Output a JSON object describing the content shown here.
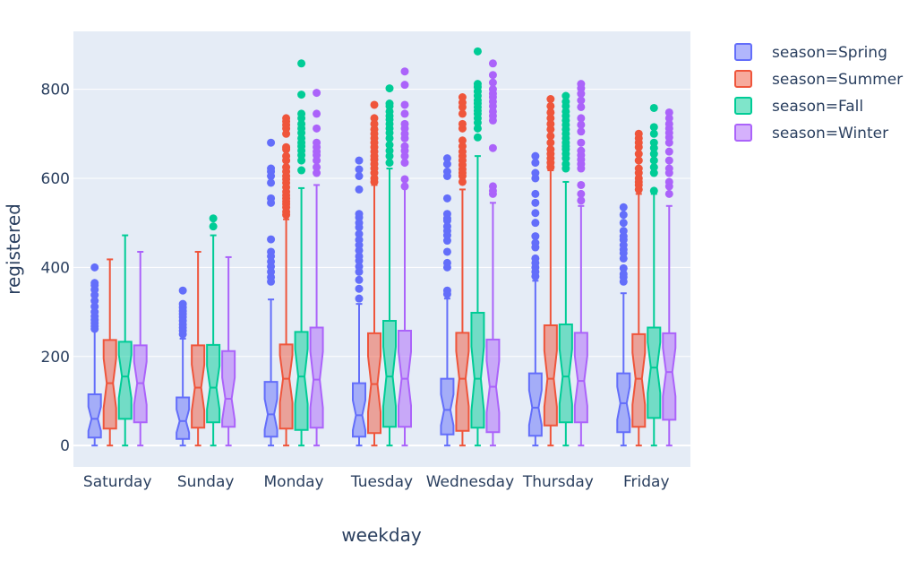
{
  "chart_data": {
    "type": "box",
    "notched": true,
    "xlabel": "weekday",
    "ylabel": "registered",
    "ylim": [
      -48,
      930
    ],
    "y_ticks": [
      0,
      200,
      400,
      600,
      800
    ],
    "y_tick_labels": [
      "0",
      "200",
      "400",
      "600",
      "800"
    ],
    "categories": [
      "Saturday",
      "Sunday",
      "Monday",
      "Tuesday",
      "Wednesday",
      "Thursday",
      "Friday"
    ],
    "grid": true,
    "legend_position": "top-right",
    "series": [
      {
        "name": "season=Spring",
        "color": "#636efa",
        "fill": "#b1b6fc",
        "boxes": [
          {
            "min": 0,
            "q1": 18,
            "median": 60,
            "q3": 115,
            "max": 258,
            "outliers": [
              262,
              268,
              275,
              282,
              290,
              300,
              312,
              325,
              338,
              350,
              360,
              365,
              400
            ]
          },
          {
            "min": 0,
            "q1": 15,
            "median": 55,
            "q3": 108,
            "max": 240,
            "outliers": [
              250,
              258,
              265,
              272,
              280,
              288,
              295,
              302,
              310,
              318,
              348
            ]
          },
          {
            "min": 0,
            "q1": 20,
            "median": 70,
            "q3": 143,
            "max": 328,
            "outliers": [
              368,
              378,
              390,
              402,
              413,
              425,
              435,
              463,
              545,
              555,
              590,
              605,
              615,
              622,
              680
            ]
          },
          {
            "min": 0,
            "q1": 20,
            "median": 68,
            "q3": 140,
            "max": 318,
            "outliers": [
              330,
              352,
              372,
              390,
              402,
              415,
              425,
              438,
              450,
              462,
              475,
              490,
              500,
              512,
              520,
              575,
              605,
              620,
              640
            ]
          },
          {
            "min": 0,
            "q1": 25,
            "median": 80,
            "q3": 150,
            "max": 330,
            "outliers": [
              340,
              348,
              400,
              410,
              435,
              460,
              472,
              482,
              492,
              505,
              510,
              520,
              555,
              605,
              615,
              632,
              645
            ]
          },
          {
            "min": 0,
            "q1": 22,
            "median": 85,
            "q3": 162,
            "max": 370,
            "outliers": [
              380,
              390,
              400,
              410,
              420,
              445,
              455,
              470,
              500,
              522,
              545,
              565,
              600,
              612,
              635,
              650
            ]
          },
          {
            "min": 0,
            "q1": 30,
            "median": 95,
            "q3": 162,
            "max": 342,
            "outliers": [
              368,
              378,
              385,
              398,
              420,
              432,
              440,
              450,
              462,
              470,
              482,
              500,
              518,
              535
            ]
          }
        ]
      },
      {
        "name": "season=Summer",
        "color": "#ef553b",
        "fill": "#f7aa9d",
        "boxes": [
          {
            "min": 0,
            "q1": 38,
            "median": 140,
            "q3": 237,
            "max": 418,
            "outliers": []
          },
          {
            "min": 0,
            "q1": 40,
            "median": 130,
            "q3": 225,
            "max": 435,
            "outliers": []
          },
          {
            "min": 0,
            "q1": 38,
            "median": 150,
            "q3": 227,
            "max": 508,
            "outliers": [
              518,
              525,
              535,
              542,
              548,
              555,
              562,
              570,
              580,
              590,
              598,
              605,
              615,
              625,
              640,
              650,
              665,
              670,
              700,
              712,
              720,
              728,
              735
            ]
          },
          {
            "min": 0,
            "q1": 28,
            "median": 138,
            "q3": 252,
            "max": 585,
            "outliers": [
              592,
              600,
              612,
              622,
              632,
              642,
              650,
              660,
              670,
              680,
              690,
              700,
              710,
              722,
              735,
              765
            ]
          },
          {
            "min": 0,
            "q1": 33,
            "median": 150,
            "q3": 253,
            "max": 575,
            "outliers": [
              592,
              605,
              612,
              620,
              630,
              640,
              650,
              660,
              672,
              685,
              712,
              722,
              745,
              760,
              770,
              782
            ]
          },
          {
            "min": 0,
            "q1": 45,
            "median": 150,
            "q3": 270,
            "max": 618,
            "outliers": [
              625,
              635,
              645,
              655,
              665,
              680,
              695,
              710,
              722,
              735,
              748,
              762,
              778
            ]
          },
          {
            "min": 0,
            "q1": 42,
            "median": 150,
            "q3": 250,
            "max": 565,
            "outliers": [
              575,
              585,
              592,
              600,
              612,
              622,
              640,
              655,
              670,
              680,
              690,
              700
            ]
          }
        ]
      },
      {
        "name": "season=Fall",
        "color": "#00cc96",
        "fill": "#80e5cb",
        "boxes": [
          {
            "min": 0,
            "q1": 60,
            "median": 155,
            "q3": 233,
            "max": 472,
            "outliers": []
          },
          {
            "min": 0,
            "q1": 52,
            "median": 130,
            "q3": 226,
            "max": 472,
            "outliers": [
              492,
              510
            ]
          },
          {
            "min": 0,
            "q1": 35,
            "median": 155,
            "q3": 255,
            "max": 578,
            "outliers": [
              618,
              640,
              652,
              662,
              672,
              680,
              690,
              702,
              712,
              722,
              735,
              745,
              788,
              858
            ]
          },
          {
            "min": 0,
            "q1": 42,
            "median": 155,
            "q3": 280,
            "max": 622,
            "outliers": [
              635,
              650,
              662,
              675,
              690,
              702,
              712,
              722,
              732,
              740,
              750,
              762,
              768,
              802
            ]
          },
          {
            "min": 0,
            "q1": 40,
            "median": 150,
            "q3": 298,
            "max": 650,
            "outliers": [
              692,
              712,
              725,
              735,
              745,
              752,
              760,
              768,
              775,
              785,
              795,
              805,
              812,
              885
            ]
          },
          {
            "min": 0,
            "q1": 52,
            "median": 155,
            "q3": 272,
            "max": 592,
            "outliers": [
              622,
              632,
              645,
              655,
              665,
              672,
              680,
              690,
              700,
              710,
              720,
              730,
              740,
              750,
              762,
              772,
              785
            ]
          },
          {
            "min": 0,
            "q1": 62,
            "median": 175,
            "q3": 265,
            "max": 565,
            "outliers": [
              572,
              612,
              625,
              640,
              655,
              668,
              680,
              700,
              715,
              758
            ]
          }
        ]
      },
      {
        "name": "season=Winter",
        "color": "#ab63fa",
        "fill": "#d5b1fc",
        "boxes": [
          {
            "min": 0,
            "q1": 52,
            "median": 140,
            "q3": 225,
            "max": 435,
            "outliers": []
          },
          {
            "min": 0,
            "q1": 42,
            "median": 105,
            "q3": 212,
            "max": 423,
            "outliers": []
          },
          {
            "min": 0,
            "q1": 40,
            "median": 148,
            "q3": 265,
            "max": 585,
            "outliers": [
              612,
              625,
              640,
              652,
              660,
              670,
              680,
              712,
              745,
              792
            ]
          },
          {
            "min": 0,
            "q1": 42,
            "median": 150,
            "q3": 258,
            "max": 578,
            "outliers": [
              582,
              598,
              635,
              650,
              662,
              672,
              690,
              700,
              712,
              722,
              745,
              765,
              810,
              840
            ]
          },
          {
            "min": 0,
            "q1": 30,
            "median": 132,
            "q3": 238,
            "max": 545,
            "outliers": [
              565,
              572,
              582,
              668,
              730,
              740,
              750,
              762,
              772,
              782,
              790,
              800,
              815,
              832,
              858
            ]
          },
          {
            "min": 0,
            "q1": 52,
            "median": 145,
            "q3": 253,
            "max": 538,
            "outliers": [
              550,
              565,
              585,
              622,
              632,
              642,
              652,
              662,
              680,
              705,
              720,
              735,
              760,
              775,
              790,
              802,
              812
            ]
          },
          {
            "min": 0,
            "q1": 58,
            "median": 165,
            "q3": 252,
            "max": 538,
            "outliers": [
              565,
              582,
              592,
              612,
              622,
              640,
              660,
              680,
              692,
              702,
              712,
              722,
              735,
              748
            ]
          }
        ]
      }
    ]
  }
}
